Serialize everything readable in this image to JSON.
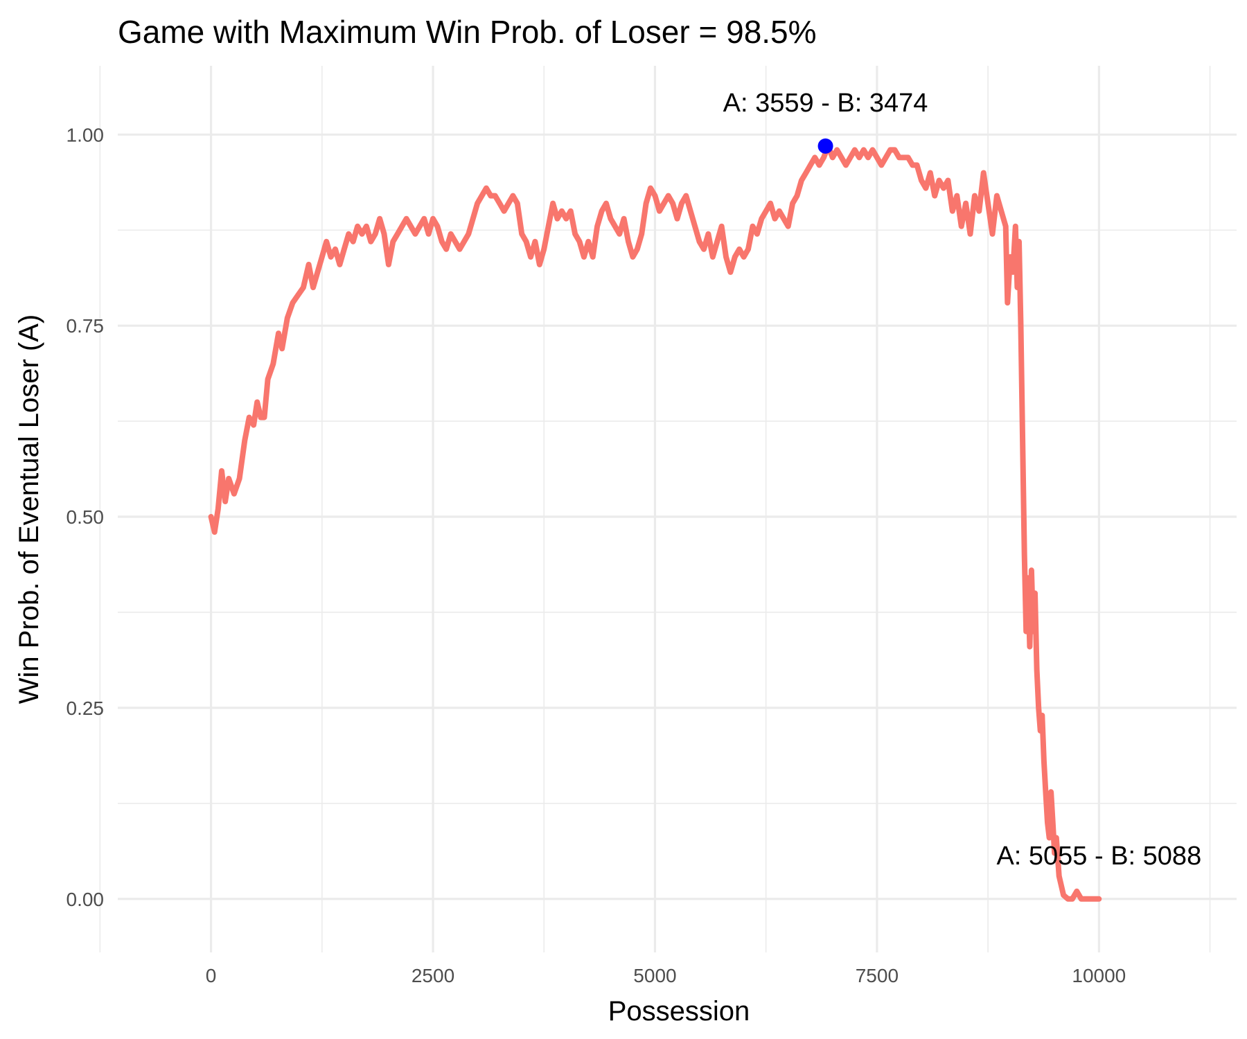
{
  "chart_data": {
    "type": "line",
    "title": "Game with Maximum Win Prob. of Loser = 98.5%",
    "xlabel": "Possession",
    "ylabel": "Win Prob. of Eventual Loser (A)",
    "xlim": [
      -1050,
      11550
    ],
    "ylim": [
      -0.07,
      1.09
    ],
    "x_ticks": [
      0,
      2500,
      5000,
      7500,
      10000
    ],
    "x_tick_labels": [
      "0",
      "2500",
      "5000",
      "7500",
      "10000"
    ],
    "x_minor_ticks": [
      -1250,
      1250,
      3750,
      6250,
      8750,
      11250
    ],
    "y_ticks": [
      0,
      0.25,
      0.5,
      0.75,
      1.0
    ],
    "y_tick_labels": [
      "0.00",
      "0.25",
      "0.50",
      "0.75",
      "1.00"
    ],
    "y_minor_ticks": [
      0.125,
      0.375,
      0.625,
      0.875
    ],
    "grid": true,
    "series": [
      {
        "color": "#F8766D",
        "points": [
          [
            0,
            0.5
          ],
          [
            40,
            0.48
          ],
          [
            80,
            0.51
          ],
          [
            120,
            0.56
          ],
          [
            160,
            0.52
          ],
          [
            200,
            0.55
          ],
          [
            260,
            0.53
          ],
          [
            320,
            0.55
          ],
          [
            380,
            0.6
          ],
          [
            430,
            0.63
          ],
          [
            480,
            0.62
          ],
          [
            520,
            0.65
          ],
          [
            560,
            0.63
          ],
          [
            600,
            0.63
          ],
          [
            640,
            0.68
          ],
          [
            700,
            0.7
          ],
          [
            760,
            0.74
          ],
          [
            800,
            0.72
          ],
          [
            860,
            0.76
          ],
          [
            920,
            0.78
          ],
          [
            980,
            0.79
          ],
          [
            1040,
            0.8
          ],
          [
            1100,
            0.83
          ],
          [
            1150,
            0.8
          ],
          [
            1200,
            0.82
          ],
          [
            1250,
            0.84
          ],
          [
            1300,
            0.86
          ],
          [
            1350,
            0.84
          ],
          [
            1400,
            0.85
          ],
          [
            1450,
            0.83
          ],
          [
            1500,
            0.85
          ],
          [
            1550,
            0.87
          ],
          [
            1600,
            0.86
          ],
          [
            1650,
            0.88
          ],
          [
            1700,
            0.87
          ],
          [
            1750,
            0.88
          ],
          [
            1800,
            0.86
          ],
          [
            1850,
            0.87
          ],
          [
            1900,
            0.89
          ],
          [
            1950,
            0.87
          ],
          [
            2000,
            0.83
          ],
          [
            2050,
            0.86
          ],
          [
            2100,
            0.87
          ],
          [
            2150,
            0.88
          ],
          [
            2200,
            0.89
          ],
          [
            2250,
            0.88
          ],
          [
            2300,
            0.87
          ],
          [
            2350,
            0.88
          ],
          [
            2400,
            0.89
          ],
          [
            2450,
            0.87
          ],
          [
            2500,
            0.89
          ],
          [
            2550,
            0.88
          ],
          [
            2600,
            0.86
          ],
          [
            2650,
            0.85
          ],
          [
            2700,
            0.87
          ],
          [
            2750,
            0.86
          ],
          [
            2800,
            0.85
          ],
          [
            2850,
            0.86
          ],
          [
            2900,
            0.87
          ],
          [
            2950,
            0.89
          ],
          [
            3000,
            0.91
          ],
          [
            3050,
            0.92
          ],
          [
            3100,
            0.93
          ],
          [
            3150,
            0.92
          ],
          [
            3200,
            0.92
          ],
          [
            3250,
            0.91
          ],
          [
            3300,
            0.9
          ],
          [
            3350,
            0.91
          ],
          [
            3400,
            0.92
          ],
          [
            3450,
            0.91
          ],
          [
            3500,
            0.87
          ],
          [
            3550,
            0.86
          ],
          [
            3600,
            0.84
          ],
          [
            3650,
            0.86
          ],
          [
            3700,
            0.83
          ],
          [
            3750,
            0.85
          ],
          [
            3800,
            0.88
          ],
          [
            3850,
            0.91
          ],
          [
            3900,
            0.89
          ],
          [
            3950,
            0.9
          ],
          [
            4000,
            0.89
          ],
          [
            4050,
            0.9
          ],
          [
            4100,
            0.87
          ],
          [
            4150,
            0.86
          ],
          [
            4200,
            0.84
          ],
          [
            4250,
            0.86
          ],
          [
            4300,
            0.84
          ],
          [
            4350,
            0.88
          ],
          [
            4400,
            0.9
          ],
          [
            4450,
            0.91
          ],
          [
            4500,
            0.89
          ],
          [
            4550,
            0.88
          ],
          [
            4600,
            0.87
          ],
          [
            4650,
            0.89
          ],
          [
            4700,
            0.86
          ],
          [
            4750,
            0.84
          ],
          [
            4800,
            0.85
          ],
          [
            4850,
            0.87
          ],
          [
            4900,
            0.91
          ],
          [
            4950,
            0.93
          ],
          [
            5000,
            0.92
          ],
          [
            5050,
            0.9
          ],
          [
            5100,
            0.91
          ],
          [
            5150,
            0.92
          ],
          [
            5200,
            0.91
          ],
          [
            5250,
            0.89
          ],
          [
            5300,
            0.91
          ],
          [
            5350,
            0.92
          ],
          [
            5400,
            0.9
          ],
          [
            5450,
            0.88
          ],
          [
            5500,
            0.86
          ],
          [
            5550,
            0.85
          ],
          [
            5600,
            0.87
          ],
          [
            5650,
            0.84
          ],
          [
            5700,
            0.86
          ],
          [
            5750,
            0.88
          ],
          [
            5800,
            0.84
          ],
          [
            5850,
            0.82
          ],
          [
            5900,
            0.84
          ],
          [
            5950,
            0.85
          ],
          [
            6000,
            0.84
          ],
          [
            6050,
            0.85
          ],
          [
            6100,
            0.88
          ],
          [
            6150,
            0.87
          ],
          [
            6200,
            0.89
          ],
          [
            6250,
            0.9
          ],
          [
            6300,
            0.91
          ],
          [
            6350,
            0.89
          ],
          [
            6400,
            0.9
          ],
          [
            6450,
            0.89
          ],
          [
            6500,
            0.88
          ],
          [
            6550,
            0.91
          ],
          [
            6600,
            0.92
          ],
          [
            6650,
            0.94
          ],
          [
            6700,
            0.95
          ],
          [
            6750,
            0.96
          ],
          [
            6800,
            0.97
          ],
          [
            6850,
            0.96
          ],
          [
            6900,
            0.97
          ],
          [
            6950,
            0.985
          ],
          [
            7000,
            0.97
          ],
          [
            7050,
            0.98
          ],
          [
            7100,
            0.97
          ],
          [
            7150,
            0.96
          ],
          [
            7200,
            0.97
          ],
          [
            7250,
            0.98
          ],
          [
            7300,
            0.97
          ],
          [
            7350,
            0.98
          ],
          [
            7400,
            0.97
          ],
          [
            7450,
            0.98
          ],
          [
            7500,
            0.97
          ],
          [
            7550,
            0.96
          ],
          [
            7600,
            0.97
          ],
          [
            7650,
            0.98
          ],
          [
            7700,
            0.98
          ],
          [
            7750,
            0.97
          ],
          [
            7800,
            0.97
          ],
          [
            7850,
            0.97
          ],
          [
            7900,
            0.96
          ],
          [
            7950,
            0.96
          ],
          [
            8000,
            0.94
          ],
          [
            8050,
            0.93
          ],
          [
            8100,
            0.95
          ],
          [
            8150,
            0.92
          ],
          [
            8200,
            0.94
          ],
          [
            8250,
            0.93
          ],
          [
            8300,
            0.94
          ],
          [
            8350,
            0.9
          ],
          [
            8400,
            0.92
          ],
          [
            8450,
            0.88
          ],
          [
            8500,
            0.91
          ],
          [
            8550,
            0.87
          ],
          [
            8600,
            0.92
          ],
          [
            8650,
            0.9
          ],
          [
            8700,
            0.95
          ],
          [
            8750,
            0.91
          ],
          [
            8800,
            0.87
          ],
          [
            8850,
            0.92
          ],
          [
            8900,
            0.9
          ],
          [
            8950,
            0.88
          ],
          [
            8970,
            0.78
          ],
          [
            9000,
            0.84
          ],
          [
            9030,
            0.82
          ],
          [
            9060,
            0.88
          ],
          [
            9080,
            0.8
          ],
          [
            9100,
            0.86
          ],
          [
            9120,
            0.75
          ],
          [
            9140,
            0.6
          ],
          [
            9160,
            0.45
          ],
          [
            9180,
            0.35
          ],
          [
            9200,
            0.42
          ],
          [
            9220,
            0.33
          ],
          [
            9240,
            0.43
          ],
          [
            9260,
            0.35
          ],
          [
            9280,
            0.4
          ],
          [
            9300,
            0.3
          ],
          [
            9320,
            0.25
          ],
          [
            9340,
            0.22
          ],
          [
            9360,
            0.24
          ],
          [
            9380,
            0.18
          ],
          [
            9400,
            0.14
          ],
          [
            9420,
            0.1
          ],
          [
            9440,
            0.08
          ],
          [
            9460,
            0.14
          ],
          [
            9480,
            0.1
          ],
          [
            9500,
            0.06
          ],
          [
            9520,
            0.08
          ],
          [
            9550,
            0.03
          ],
          [
            9600,
            0.005
          ],
          [
            9650,
            0.0
          ],
          [
            9700,
            0.0
          ],
          [
            9750,
            0.01
          ],
          [
            9800,
            0.0
          ],
          [
            9900,
            0.0
          ],
          [
            10000,
            0.0
          ]
        ]
      }
    ],
    "highlight_point": {
      "x": 6920,
      "y": 0.985,
      "color": "#0000FF"
    },
    "annotations": [
      {
        "text": "A: 3559 - B: 3474",
        "x": 6920,
        "y": 1.03
      },
      {
        "text": "A: 5055 - B: 5088",
        "x": 10000,
        "y": 0.045
      }
    ]
  }
}
